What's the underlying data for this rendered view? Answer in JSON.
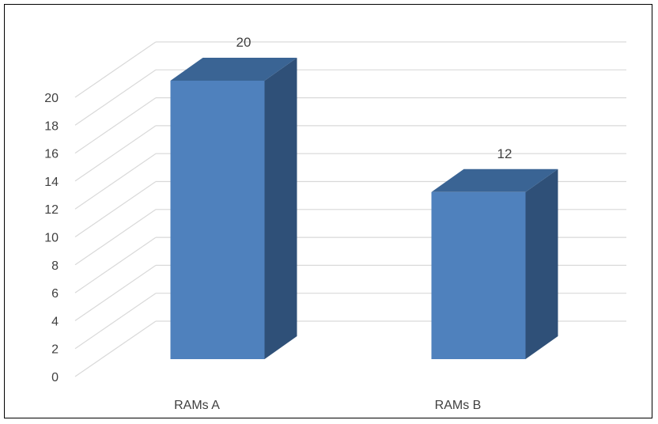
{
  "chart_data": {
    "type": "bar",
    "style": "3d-column",
    "categories": [
      "RAMs A",
      "RAMs B"
    ],
    "values": [
      20,
      12
    ],
    "data_labels": [
      "20",
      "12"
    ],
    "title": "",
    "xlabel": "",
    "ylabel": "",
    "ylim": [
      0,
      20
    ],
    "yticks": [
      "0",
      "2",
      "4",
      "6",
      "8",
      "10",
      "12",
      "14",
      "16",
      "18",
      "20"
    ],
    "grid": true,
    "legend": "none",
    "colors": {
      "bar_front": "#4f81bd",
      "bar_side": "#2f5078",
      "bar_top": "#3a6494",
      "gridline": "#d9d9d9",
      "text": "#404040"
    }
  }
}
